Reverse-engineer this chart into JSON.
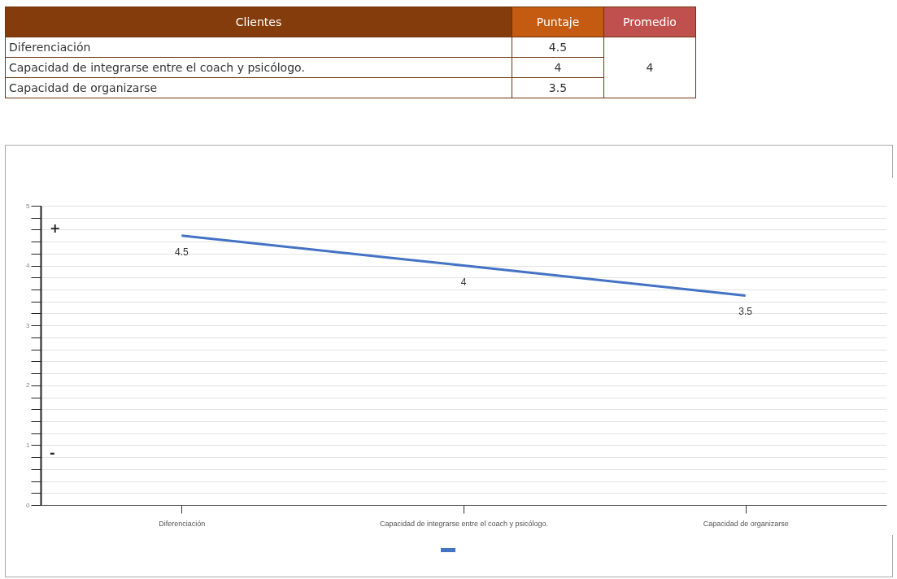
{
  "chart_data": [
    {
      "type": "other",
      "annotations": [
        "Clientes",
        "Puntaje",
        "Promedio"
      ],
      "categories": [
        "Diferenciación",
        "Capacidad de integrarse entre el coach y psicólogo.",
        "Capacidad de organizarse"
      ],
      "values": [
        4.5,
        4,
        3.5
      ],
      "y2_categories": [
        "4"
      ],
      "data_labels": true
    },
    {
      "type": "line",
      "categories": [
        "Diferenciación",
        "Capacidad de integrarse entre el coach y psicólogo.",
        "Capacidad de organizarse"
      ],
      "series": [
        {
          "color": "#4472c4",
          "values": [
            4.5,
            4,
            3.5
          ]
        }
      ],
      "ylim": [
        0,
        5
      ],
      "yticks": [
        0,
        {
          "value": 0.2,
          "label": null
        },
        {
          "value": 0.4,
          "label": null
        },
        {
          "value": 0.6,
          "label": null
        },
        {
          "value": 0.8,
          "label": null
        },
        1,
        {
          "value": 1.2,
          "label": null
        },
        {
          "value": 1.4,
          "label": null
        },
        {
          "value": 1.6,
          "label": null
        },
        {
          "value": 1.8,
          "label": null
        },
        2,
        {
          "value": 2.2,
          "label": null
        },
        {
          "value": 2.4,
          "label": null
        },
        {
          "value": 2.6,
          "label": null
        },
        {
          "value": 2.8,
          "label": null
        },
        3,
        {
          "value": 3.2,
          "label": null
        },
        {
          "value": 3.4,
          "label": null
        },
        {
          "value": 3.6,
          "label": null
        },
        {
          "value": 3.8,
          "label": null
        },
        4,
        {
          "value": 4.2,
          "label": null
        },
        {
          "value": 4.4,
          "label": null
        },
        {
          "value": 4.6,
          "label": null
        },
        {
          "value": 4.8,
          "label": null
        },
        5
      ],
      "grid": "y",
      "data_labels": true,
      "marker": "none",
      "annotations": [
        "+",
        "-"
      ]
    }
  ]
}
